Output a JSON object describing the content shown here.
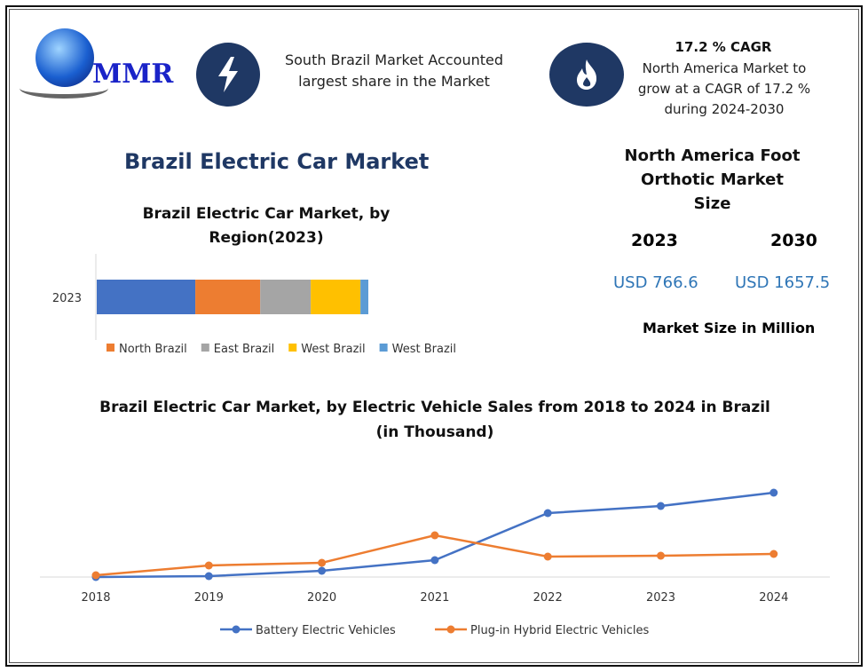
{
  "logo": {
    "text": "MMR"
  },
  "info1": {
    "icon": "lightning-icon",
    "text": "South Brazil Market Accounted largest share in the Market"
  },
  "info2": {
    "icon": "flame-icon",
    "title": "17.2 % CAGR",
    "text": "North America Market to grow at a CAGR of 17.2 % during 2024-2030"
  },
  "main_title": "Brazil Electric Car Market",
  "market_size": {
    "title": "North America Foot Orthotic Market Size",
    "year1": "2023",
    "year2": "2030",
    "value1": "USD 766.6",
    "value2": "USD 1657.5",
    "note": "Market Size in Million",
    "value_color": "#2e75b6"
  },
  "chart_data": [
    {
      "type": "bar",
      "orientation": "horizontal",
      "stacked": true,
      "title": "Brazil Electric Car Market, by Region(2023)",
      "categories": [
        "2023"
      ],
      "series": [
        {
          "name": "",
          "values": [
            36.3
          ],
          "color": "#4472c4"
        },
        {
          "name": "North Brazil",
          "values": [
            23.9
          ],
          "color": "#ed7d31"
        },
        {
          "name": "East Brazil",
          "values": [
            18.6
          ],
          "color": "#a5a5a5"
        },
        {
          "name": "West Brazil",
          "values": [
            18.3
          ],
          "color": "#ffc000"
        },
        {
          "name": "West Brazil",
          "values": [
            2.9
          ],
          "color": "#5b9bd5"
        }
      ],
      "legend": "bottom"
    },
    {
      "type": "line",
      "title": "Brazil Electric Car Market, by Electric Vehicle Sales from 2018 to 2024 in Brazil",
      "subtitle": "(in Thousand)",
      "x": [
        "2018",
        "2019",
        "2020",
        "2021",
        "2022",
        "2023",
        "2024"
      ],
      "series": [
        {
          "name": "Battery Electric Vehicles",
          "values": [
            0,
            1,
            7,
            19,
            72,
            80,
            95
          ],
          "color": "#4472c4"
        },
        {
          "name": "Plug-in Hybrid Electric Vehicles",
          "values": [
            2,
            13,
            16,
            47,
            23,
            24,
            26
          ],
          "color": "#ed7d31"
        }
      ],
      "ylim": [
        0,
        100
      ],
      "legend": "bottom",
      "grid": false
    }
  ]
}
